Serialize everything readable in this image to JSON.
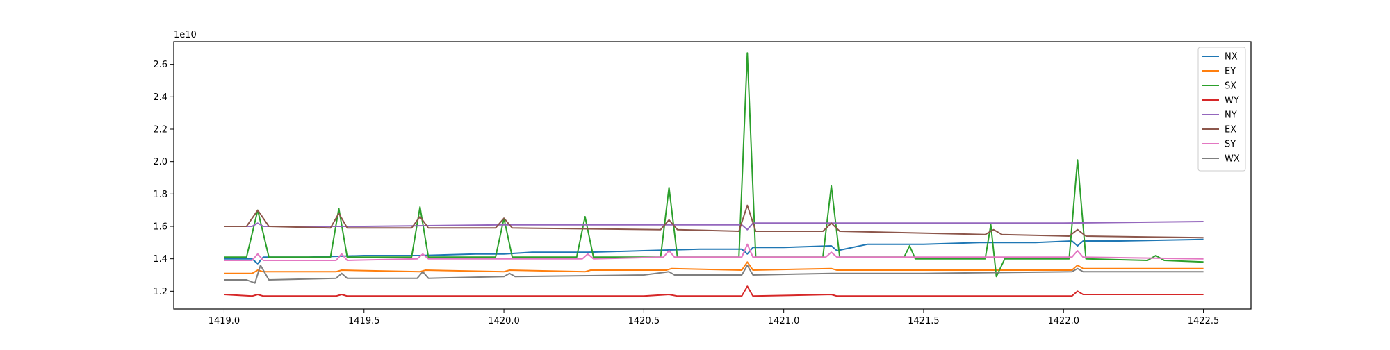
{
  "chart_data": {
    "type": "line",
    "title": "",
    "xlabel": "",
    "ylabel": "",
    "y_offset_label": "1e10",
    "xlim": [
      1418.82,
      1422.67
    ],
    "ylim": [
      1.09,
      2.74
    ],
    "x_ticks": [
      1419.0,
      1419.5,
      1420.0,
      1420.5,
      1421.0,
      1421.5,
      1422.0,
      1422.5
    ],
    "x_tick_labels": [
      "1419.0",
      "1419.5",
      "1420.0",
      "1420.5",
      "1421.0",
      "1421.5",
      "1422.0",
      "1422.5"
    ],
    "y_ticks": [
      1.2,
      1.4,
      1.6,
      1.8,
      2.0,
      2.2,
      2.4,
      2.6
    ],
    "y_tick_labels": [
      "1.2",
      "1.4",
      "1.6",
      "1.8",
      "2.0",
      "2.2",
      "2.4",
      "2.6"
    ],
    "grid": false,
    "legend_position": "top-right",
    "series_colors": [
      "#1f77b4",
      "#ff7f0e",
      "#2ca02c",
      "#d62728",
      "#9467bd",
      "#8c564b",
      "#e377c2",
      "#7f7f7f"
    ],
    "series": [
      {
        "name": "NX",
        "color": "#1f77b4",
        "x": [
          1419.0,
          1419.1,
          1419.12,
          1419.14,
          1419.3,
          1419.5,
          1419.7,
          1419.9,
          1420.0,
          1420.1,
          1420.3,
          1420.5,
          1420.7,
          1420.85,
          1420.87,
          1420.89,
          1421.0,
          1421.17,
          1421.19,
          1421.3,
          1421.5,
          1421.7,
          1421.9,
          1422.03,
          1422.05,
          1422.07,
          1422.2,
          1422.5
        ],
        "y": [
          1.4,
          1.4,
          1.37,
          1.41,
          1.41,
          1.42,
          1.42,
          1.43,
          1.43,
          1.44,
          1.44,
          1.45,
          1.46,
          1.46,
          1.43,
          1.47,
          1.47,
          1.48,
          1.45,
          1.49,
          1.49,
          1.5,
          1.5,
          1.51,
          1.48,
          1.51,
          1.51,
          1.52
        ]
      },
      {
        "name": "EY",
        "color": "#ff7f0e",
        "x": [
          1419.0,
          1419.1,
          1419.12,
          1419.14,
          1419.4,
          1419.42,
          1419.7,
          1419.72,
          1420.0,
          1420.02,
          1420.29,
          1420.31,
          1420.58,
          1420.6,
          1420.85,
          1420.87,
          1420.89,
          1421.17,
          1421.19,
          1421.5,
          1421.75,
          1422.03,
          1422.05,
          1422.07,
          1422.3,
          1422.5
        ],
        "y": [
          1.31,
          1.31,
          1.33,
          1.32,
          1.32,
          1.33,
          1.32,
          1.33,
          1.32,
          1.33,
          1.32,
          1.33,
          1.33,
          1.34,
          1.33,
          1.38,
          1.33,
          1.34,
          1.33,
          1.33,
          1.33,
          1.33,
          1.36,
          1.34,
          1.34,
          1.34
        ]
      },
      {
        "name": "SX",
        "color": "#2ca02c",
        "x": [
          1419.0,
          1419.08,
          1419.12,
          1419.16,
          1419.38,
          1419.41,
          1419.44,
          1419.67,
          1419.7,
          1419.73,
          1419.97,
          1420.0,
          1420.03,
          1420.26,
          1420.29,
          1420.32,
          1420.56,
          1420.59,
          1420.62,
          1420.84,
          1420.87,
          1420.9,
          1421.14,
          1421.17,
          1421.2,
          1421.43,
          1421.45,
          1421.47,
          1421.72,
          1421.74,
          1421.76,
          1421.79,
          1422.02,
          1422.05,
          1422.08,
          1422.3,
          1422.33,
          1422.36,
          1422.5
        ],
        "y": [
          1.41,
          1.41,
          1.7,
          1.41,
          1.41,
          1.71,
          1.41,
          1.41,
          1.72,
          1.41,
          1.41,
          1.65,
          1.41,
          1.41,
          1.66,
          1.41,
          1.41,
          1.84,
          1.41,
          1.41,
          2.67,
          1.41,
          1.41,
          1.85,
          1.41,
          1.41,
          1.48,
          1.4,
          1.4,
          1.61,
          1.29,
          1.4,
          1.4,
          2.01,
          1.4,
          1.39,
          1.42,
          1.39,
          1.38
        ]
      },
      {
        "name": "WY",
        "color": "#d62728",
        "x": [
          1419.0,
          1419.1,
          1419.12,
          1419.14,
          1419.4,
          1419.42,
          1419.44,
          1420.0,
          1420.5,
          1420.59,
          1420.62,
          1420.85,
          1420.87,
          1420.89,
          1421.17,
          1421.19,
          1421.5,
          1422.03,
          1422.05,
          1422.07,
          1422.5
        ],
        "y": [
          1.18,
          1.17,
          1.18,
          1.17,
          1.17,
          1.18,
          1.17,
          1.17,
          1.17,
          1.18,
          1.17,
          1.17,
          1.23,
          1.17,
          1.18,
          1.17,
          1.17,
          1.17,
          1.2,
          1.18,
          1.18
        ]
      },
      {
        "name": "NY",
        "color": "#9467bd",
        "x": [
          1419.0,
          1419.1,
          1419.12,
          1419.14,
          1419.5,
          1420.0,
          1420.5,
          1420.85,
          1420.87,
          1420.89,
          1421.0,
          1421.5,
          1422.0,
          1422.5
        ],
        "y": [
          1.6,
          1.6,
          1.62,
          1.6,
          1.6,
          1.61,
          1.61,
          1.61,
          1.58,
          1.62,
          1.62,
          1.62,
          1.62,
          1.63
        ]
      },
      {
        "name": "EX",
        "color": "#8c564b",
        "x": [
          1419.0,
          1419.08,
          1419.12,
          1419.16,
          1419.38,
          1419.41,
          1419.44,
          1419.67,
          1419.7,
          1419.73,
          1419.97,
          1420.0,
          1420.03,
          1420.56,
          1420.59,
          1420.62,
          1420.84,
          1420.87,
          1420.9,
          1421.14,
          1421.17,
          1421.2,
          1421.72,
          1421.75,
          1421.78,
          1422.02,
          1422.05,
          1422.08,
          1422.5
        ],
        "y": [
          1.6,
          1.6,
          1.7,
          1.6,
          1.59,
          1.68,
          1.59,
          1.59,
          1.66,
          1.59,
          1.59,
          1.65,
          1.59,
          1.58,
          1.64,
          1.58,
          1.57,
          1.73,
          1.57,
          1.57,
          1.62,
          1.57,
          1.55,
          1.58,
          1.55,
          1.54,
          1.58,
          1.54,
          1.53
        ]
      },
      {
        "name": "SY",
        "color": "#e377c2",
        "x": [
          1419.0,
          1419.1,
          1419.12,
          1419.14,
          1419.4,
          1419.42,
          1419.44,
          1419.69,
          1419.71,
          1419.73,
          1420.0,
          1420.28,
          1420.3,
          1420.32,
          1420.57,
          1420.59,
          1420.61,
          1420.85,
          1420.87,
          1420.89,
          1421.15,
          1421.17,
          1421.19,
          1421.5,
          1422.03,
          1422.05,
          1422.07,
          1422.5
        ],
        "y": [
          1.39,
          1.39,
          1.43,
          1.39,
          1.39,
          1.43,
          1.39,
          1.4,
          1.43,
          1.4,
          1.4,
          1.4,
          1.43,
          1.4,
          1.41,
          1.45,
          1.41,
          1.41,
          1.49,
          1.41,
          1.41,
          1.44,
          1.41,
          1.41,
          1.41,
          1.45,
          1.41,
          1.4
        ]
      },
      {
        "name": "WX",
        "color": "#7f7f7f",
        "x": [
          1419.0,
          1419.08,
          1419.11,
          1419.13,
          1419.16,
          1419.4,
          1419.42,
          1419.44,
          1419.69,
          1419.71,
          1419.73,
          1420.0,
          1420.02,
          1420.04,
          1420.5,
          1420.59,
          1420.61,
          1420.85,
          1420.87,
          1420.89,
          1421.17,
          1421.19,
          1421.5,
          1422.03,
          1422.05,
          1422.07,
          1422.5
        ],
        "y": [
          1.27,
          1.27,
          1.25,
          1.36,
          1.27,
          1.28,
          1.31,
          1.28,
          1.28,
          1.32,
          1.28,
          1.29,
          1.31,
          1.29,
          1.3,
          1.32,
          1.3,
          1.3,
          1.36,
          1.3,
          1.31,
          1.31,
          1.31,
          1.32,
          1.34,
          1.32,
          1.32
        ]
      }
    ]
  }
}
